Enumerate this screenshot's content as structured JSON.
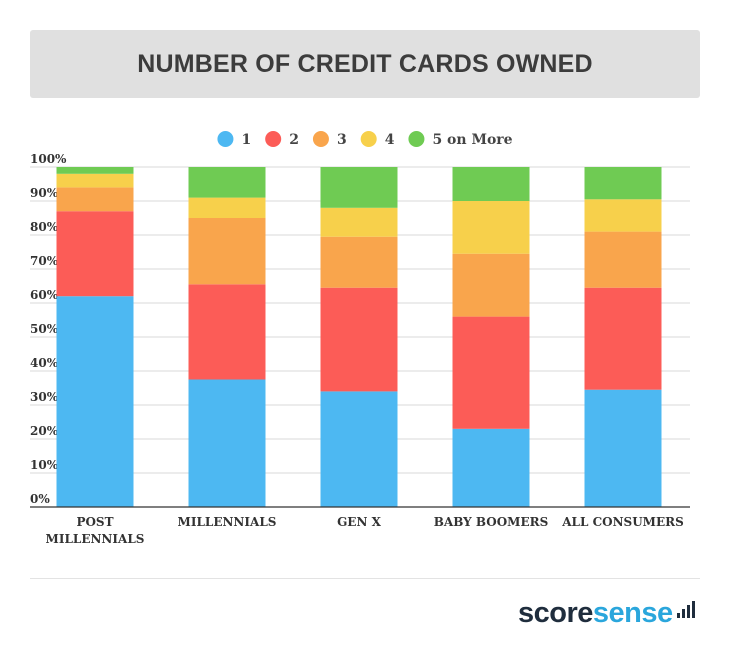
{
  "header": {
    "title": "NUMBER OF CREDIT CARDS OWNED"
  },
  "chart_data": {
    "type": "bar",
    "stacked": true,
    "title": "NUMBER OF CREDIT CARDS OWNED",
    "xlabel": "",
    "ylabel": "",
    "ylim": [
      0,
      100
    ],
    "yticks": [
      "0%",
      "10%",
      "20%",
      "30%",
      "40%",
      "50%",
      "60%",
      "70%",
      "80%",
      "90%",
      "100%"
    ],
    "grid": true,
    "legend_position": "top",
    "categories": [
      [
        "POST",
        "MILLENNIALS"
      ],
      [
        "MILLENNIALS"
      ],
      [
        "GEN X"
      ],
      [
        "BABY BOOMERS"
      ],
      [
        "ALL CONSUMERS"
      ]
    ],
    "series": [
      {
        "name": "1",
        "color": "#4db8f2",
        "values": [
          62,
          37.5,
          34,
          23,
          34.5
        ]
      },
      {
        "name": "2",
        "color": "#fc5c57",
        "values": [
          25,
          28,
          30.5,
          33,
          30
        ]
      },
      {
        "name": "3",
        "color": "#f9a54c",
        "values": [
          7,
          19.5,
          15,
          18.5,
          16.5
        ]
      },
      {
        "name": "4",
        "color": "#f7d04b",
        "values": [
          4,
          6,
          8.5,
          15.5,
          9.5
        ]
      },
      {
        "name": "5 on More",
        "color": "#6fcb53",
        "values": [
          2,
          9,
          12,
          10,
          9.5
        ]
      }
    ]
  },
  "footer": {
    "brand_a": "score",
    "brand_b": "sense"
  }
}
